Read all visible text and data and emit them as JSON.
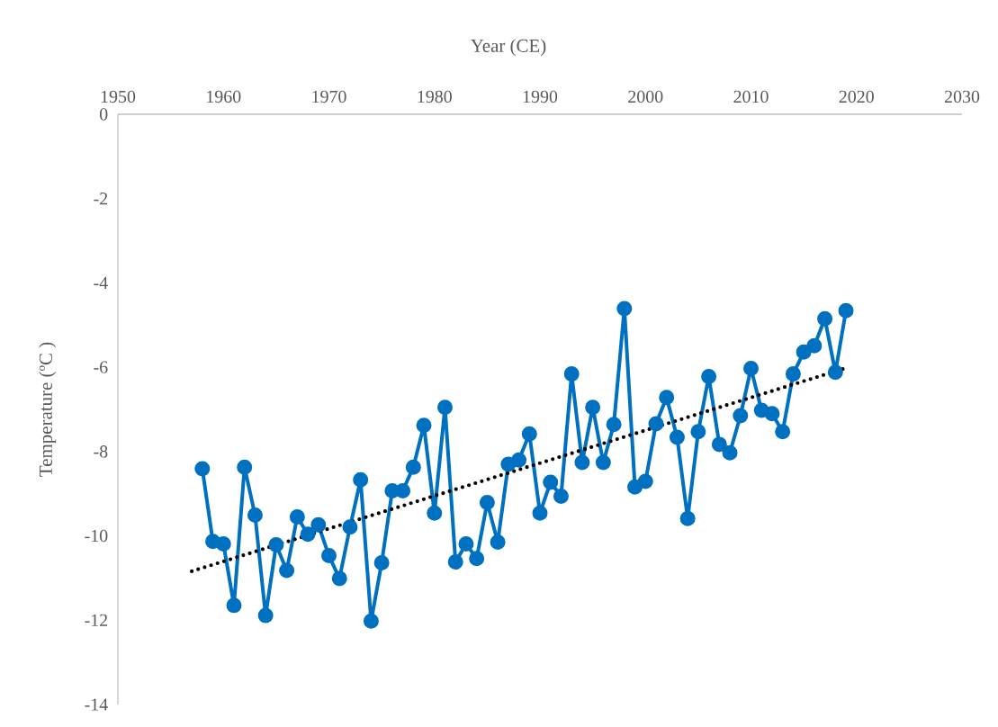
{
  "chart_data": {
    "type": "line",
    "xlabel": "Year (CE)",
    "ylabel": "Temperature (ºC )",
    "xlim": [
      1950,
      2030
    ],
    "xticks": [
      1950,
      1960,
      1970,
      1980,
      1990,
      2000,
      2010,
      2020,
      2030
    ],
    "ylim": [
      -14,
      0
    ],
    "yticks": [
      -14,
      -12,
      -10,
      -8,
      -6,
      -4,
      -2,
      0
    ],
    "grid": false,
    "series": [
      {
        "color": "#0070c0",
        "marker": "circle",
        "line_style": "solid",
        "x": [
          1958,
          1959,
          1960,
          1961,
          1962,
          1963,
          1964,
          1965,
          1966,
          1967,
          1968,
          1969,
          1970,
          1971,
          1972,
          1973,
          1974,
          1975,
          1976,
          1977,
          1978,
          1979,
          1980,
          1981,
          1982,
          1983,
          1984,
          1985,
          1986,
          1987,
          1988,
          1989,
          1990,
          1991,
          1992,
          1993,
          1994,
          1995,
          1996,
          1997,
          1998,
          1999,
          2000,
          2001,
          2002,
          2003,
          2004,
          2005,
          2006,
          2007,
          2008,
          2009,
          2010,
          2011,
          2012,
          2013,
          2014,
          2015,
          2016,
          2017,
          2018,
          2019
        ],
        "values": [
          -8.41,
          -10.13,
          -10.19,
          -11.65,
          -8.37,
          -9.51,
          -11.89,
          -10.21,
          -10.82,
          -9.55,
          -9.96,
          -9.74,
          -10.47,
          -11.01,
          -9.79,
          -8.67,
          -12.02,
          -10.64,
          -8.93,
          -8.93,
          -8.37,
          -7.38,
          -9.46,
          -6.95,
          -10.62,
          -10.19,
          -10.54,
          -9.21,
          -10.15,
          -8.3,
          -8.2,
          -7.58,
          -9.46,
          -8.73,
          -9.06,
          -6.16,
          -8.26,
          -6.95,
          -8.26,
          -7.36,
          -4.61,
          -8.84,
          -8.71,
          -7.34,
          -6.72,
          -7.66,
          -9.59,
          -7.53,
          -6.22,
          -7.83,
          -8.03,
          -7.15,
          -6.03,
          -7.02,
          -7.1,
          -7.53,
          -6.16,
          -5.64,
          -5.49,
          -4.85,
          -6.12,
          -4.66
        ]
      },
      {
        "color": "#000000",
        "marker": "none",
        "line_style": "dotted",
        "x": [
          1957,
          2019
        ],
        "values": [
          -10.84,
          -6.02
        ]
      }
    ]
  }
}
